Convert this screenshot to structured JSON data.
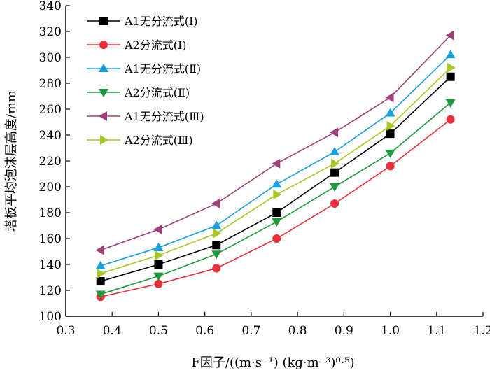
{
  "chart_data": {
    "type": "line",
    "xlabel": "F因子/((m·s⁻¹) (kg·m⁻³)⁰·⁵)",
    "ylabel": "塔板平均泡沫层高度/mm",
    "xlim": [
      0.3,
      1.2
    ],
    "ylim": [
      100,
      340
    ],
    "xticks": [
      "0.3",
      "0.4",
      "0.5",
      "0.6",
      "0.7",
      "0.8",
      "0.9",
      "1.0",
      "1.1",
      "1.2"
    ],
    "yticks": [
      "100",
      "120",
      "140",
      "160",
      "180",
      "200",
      "220",
      "240",
      "260",
      "280",
      "300",
      "320",
      "340"
    ],
    "x": [
      0.375,
      0.5,
      0.625,
      0.755,
      0.88,
      1.0,
      1.13
    ],
    "grid": false,
    "legend_position": "top-left",
    "series": [
      {
        "name": "A1无分流式(Ⅰ)",
        "color": "#000000",
        "marker": "square",
        "values": [
          127,
          140,
          155,
          180,
          211,
          241,
          285
        ]
      },
      {
        "name": "A2分流式(Ⅰ)",
        "color": "#e8303a",
        "marker": "circle",
        "values": [
          115,
          125,
          137,
          160,
          187,
          216,
          252
        ]
      },
      {
        "name": "A1无分流式(Ⅱ)",
        "color": "#18a0e0",
        "marker": "triangle-up",
        "values": [
          139,
          153,
          170,
          202,
          227,
          257,
          302
        ]
      },
      {
        "name": "A2分流式(Ⅱ)",
        "color": "#1a9a3a",
        "marker": "triangle-down",
        "values": [
          117,
          131,
          148,
          173,
          200,
          226,
          265
        ]
      },
      {
        "name": "A1无分流式(Ⅲ)",
        "color": "#a0427a",
        "marker": "triangle-left",
        "values": [
          151,
          167,
          187,
          218,
          242,
          269,
          317
        ]
      },
      {
        "name": "A2分流式(Ⅲ)",
        "color": "#a8c828",
        "marker": "triangle-right",
        "values": [
          133,
          147,
          164,
          194,
          218,
          247,
          292
        ]
      }
    ]
  }
}
